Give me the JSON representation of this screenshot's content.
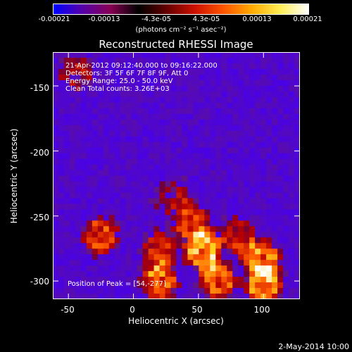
{
  "colorbar": {
    "tick_labels": [
      "-0.00021",
      "-0.00013",
      "-4.3e-05",
      "4.3e-05",
      "0.00013",
      "0.00021"
    ],
    "unit_label": "(photons cm⁻² s⁻¹ asec⁻²)",
    "colors": [
      "#0000ff",
      "#5500aa",
      "#880055",
      "#000000",
      "#660000",
      "#cc1100",
      "#ff5500",
      "#ffaa00",
      "#ffee55",
      "#ffffff"
    ]
  },
  "title": "Reconstructed RHESSI Image",
  "info": {
    "time_range": "21-Apr-2012 09:12:40.000 to 09:16:22.000",
    "detectors": "Detectors: 3F 5F 6F 7F 8F 9F, Att 0",
    "energy": "Energy Range: 25.0 - 50.0 keV",
    "clean": "Clean    Total counts: 3.26E+03"
  },
  "peak": "Position of Peak = [54,-277]",
  "axes": {
    "xlabel": "Heliocentric X (arcsec)",
    "ylabel": "Heliocentric Y (arcsec)",
    "xticks": [
      "-50",
      "0",
      "50",
      "100"
    ],
    "yticks": [
      "-150",
      "-200",
      "-250",
      "-300"
    ],
    "x_range": [
      -62,
      128
    ],
    "y_range": [
      -314,
      -124
    ]
  },
  "image_sources": [
    {
      "x": 54,
      "y": -277,
      "strength": 1.0
    },
    {
      "x": 98,
      "y": -283,
      "strength": 0.95
    },
    {
      "x": 100,
      "y": -305,
      "strength": 0.9
    },
    {
      "x": 20,
      "y": -300,
      "strength": 0.85
    },
    {
      "x": -25,
      "y": -265,
      "strength": 0.75
    },
    {
      "x": 65,
      "y": -300,
      "strength": 0.8
    },
    {
      "x": 45,
      "y": -255,
      "strength": 0.7
    },
    {
      "x": 20,
      "y": -275,
      "strength": 0.6
    },
    {
      "x": 80,
      "y": -265,
      "strength": 0.55
    },
    {
      "x": 30,
      "y": -235,
      "strength": 0.45
    },
    {
      "x": -45,
      "y": -140,
      "strength": 0.5
    }
  ],
  "datestamp": "2-May-2014 10:00"
}
